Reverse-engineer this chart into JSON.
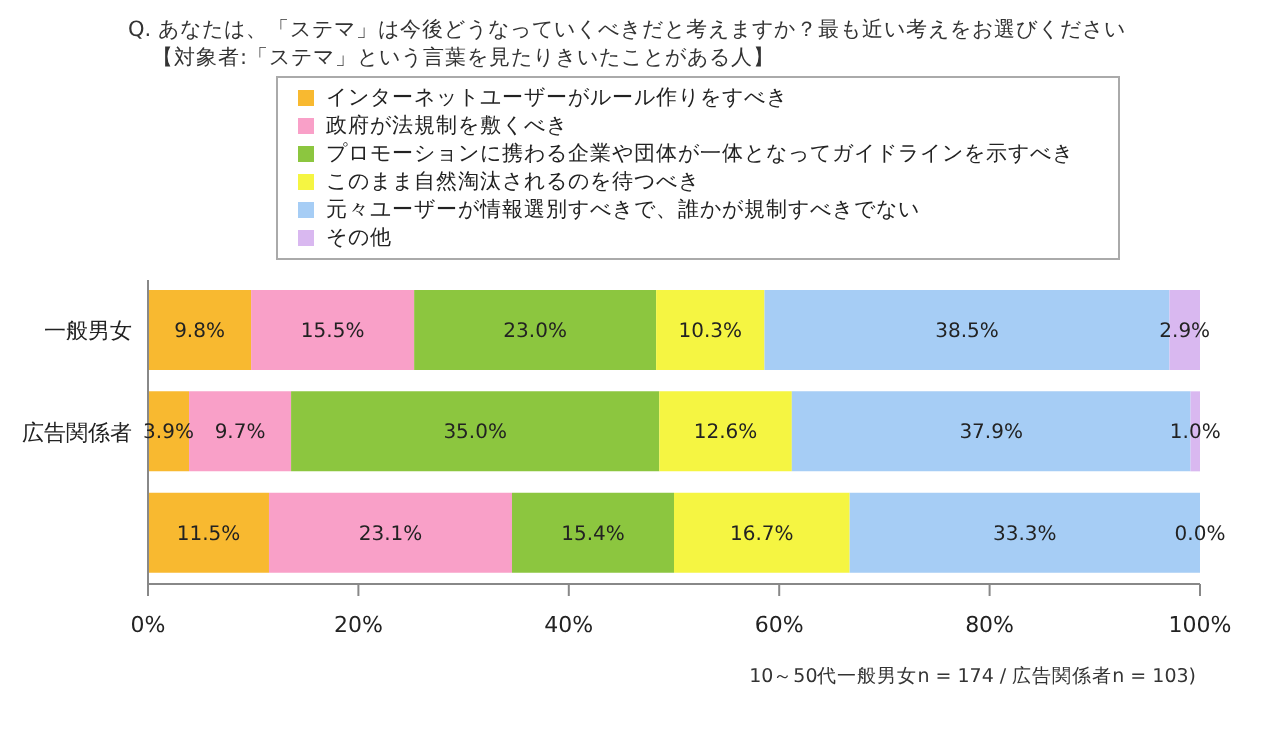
{
  "chart_data": {
    "type": "bar",
    "orientation": "horizontal",
    "stacked": true,
    "title": "Q. あなたは、「ステマ」は今後どうなっていくべきだと考えますか？最も近い考えをお選びください",
    "subtitle": "【対象者:「ステマ」という言葉を見たりきいたことがある人】",
    "categories": [
      "一般男女",
      "広告関係者",
      null
    ],
    "series": [
      {
        "name": "インターネットユーザーがルール作りをすべき",
        "color": "#f8b930",
        "values": [
          9.8,
          3.9,
          11.5
        ],
        "value_labels": [
          "9.8%",
          "3.9%",
          "11.5%"
        ]
      },
      {
        "name": "政府が法規制を敷くべき",
        "color": "#f9a0c8",
        "values": [
          15.5,
          9.7,
          23.1
        ],
        "value_labels": [
          "15.5%",
          "9.7%",
          "23.1%"
        ]
      },
      {
        "name": "プロモーションに携わる企業や団体が一体となってガイドラインを示すべき",
        "color": "#8cc63f",
        "values": [
          23.0,
          35.0,
          15.4
        ],
        "value_labels": [
          "23.0%",
          "35.0%",
          "15.4%"
        ]
      },
      {
        "name": "このまま自然淘汰されるのを待つべき",
        "color": "#f5f542",
        "values": [
          10.3,
          12.6,
          16.7
        ],
        "value_labels": [
          "10.3%",
          "12.6%",
          "16.7%"
        ]
      },
      {
        "name": "元々ユーザーが情報選別すべきで、誰かが規制すべきでない",
        "color": "#a6cdf5",
        "values": [
          38.5,
          37.9,
          33.3
        ],
        "value_labels": [
          "38.5%",
          "37.9%",
          "33.3%"
        ]
      },
      {
        "name": "その他",
        "color": "#d9b8f0",
        "values": [
          2.9,
          1.0,
          0.0
        ],
        "value_labels": [
          "2.9%",
          "1.0%",
          "0.0%"
        ]
      }
    ],
    "xlim": [
      0,
      100
    ],
    "xticks": [
      {
        "value": 0,
        "label": "0%"
      },
      {
        "value": 20,
        "label": "20%"
      },
      {
        "value": 40,
        "label": "40%"
      },
      {
        "value": 60,
        "label": "60%"
      },
      {
        "value": 80,
        "label": "80%"
      },
      {
        "value": 100,
        "label": "100%"
      }
    ],
    "legend": "top",
    "annotations": [
      "10～50代一般男女n = 174 / 広告関係者n = 103)"
    ]
  }
}
